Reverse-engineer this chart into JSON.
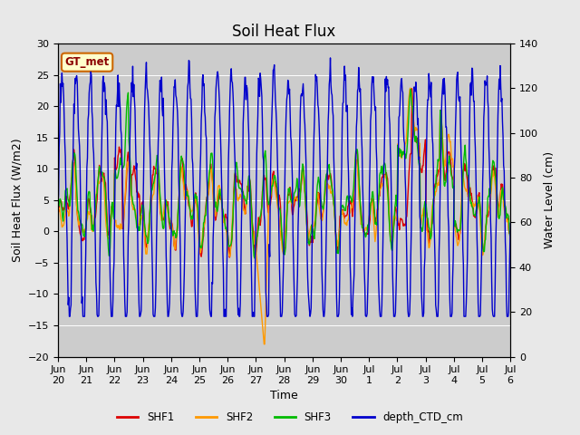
{
  "title": "Soil Heat Flux",
  "ylabel_left": "Soil Heat Flux (W/m2)",
  "ylabel_right": "Water Level (cm)",
  "xlabel": "Time",
  "ylim_left": [
    -20,
    30
  ],
  "ylim_right": [
    0,
    140
  ],
  "bg_color": "#e8e8e8",
  "plot_bg_color": "#cccccc",
  "annotation_text": "GT_met",
  "annotation_bg": "#ffffcc",
  "annotation_border": "#cc0000",
  "colors": {
    "SHF1": "#dd0000",
    "SHF2": "#ff9900",
    "SHF3": "#00bb00",
    "depth_CTD_cm": "#0000cc"
  },
  "legend_labels": [
    "SHF1",
    "SHF2",
    "SHF3",
    "depth_CTD_cm"
  ],
  "xtick_labels": [
    "Jun\n20",
    "Jun\n21",
    "Jun\n22",
    "Jun\n23",
    "Jun\n24",
    "Jun\n25",
    "Jun\n26",
    "Jun\n27",
    "Jun\n28",
    "Jun\n29",
    "Jun\n30",
    "Jul\n1",
    "Jul\n2",
    "Jul\n3",
    "Jul\n4",
    "Jul\n5",
    "Jul\n6"
  ],
  "n_points": 800,
  "seed": 12345
}
